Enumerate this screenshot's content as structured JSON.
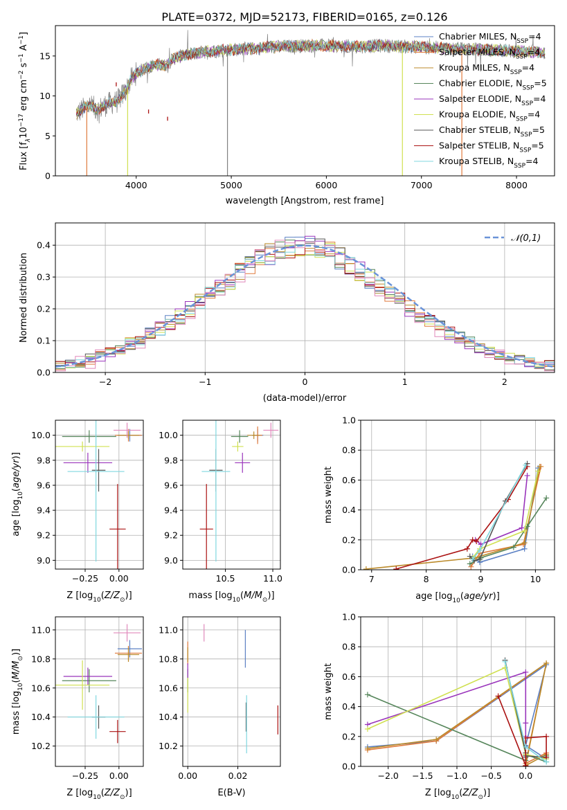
{
  "title": "PLATE=0372, MJD=52173, FIBERID=0165, z=0.126",
  "colors": {
    "Chabrier MILES": "#5b80c4",
    "Salpeter MILES": "#e07a3c",
    "Kroupa MILES": "#bb8a2a",
    "Chabrier ELODIE": "#55855a",
    "Salpeter ELODIE": "#9933bb",
    "Kroupa ELODIE": "#d0e050",
    "Chabrier STELIB": "#555555",
    "Salpeter STELIB": "#aa1111",
    "Kroupa STELIB": "#7fd7df",
    "spectrum": "#808080",
    "gaussian": "#6a93d8"
  },
  "chart_data": [
    {
      "id": "spectrum",
      "type": "line",
      "xlabel": "wavelength [Angstrom, rest frame]",
      "ylabel": "Flux [fλ10^-17 erg cm^-2 s^-1 A^-1]",
      "xlim": [
        3150,
        8400
      ],
      "ylim": [
        0,
        18.8
      ],
      "xticks": [
        4000,
        5000,
        6000,
        7000,
        8000
      ],
      "yticks": [
        0,
        5,
        10,
        15
      ],
      "legend_position": "upper right",
      "legend": [
        "Chabrier MILES, NSSP=4",
        "Salpeter MILES, NSSP=4",
        "Kroupa MILES, NSSP=4",
        "Chabrier ELODIE, NSSP=5",
        "Salpeter ELODIE, NSSP=4",
        "Kroupa ELODIE, NSSP=4",
        "Chabrier STELIB, NSSP=5",
        "Salpeter STELIB, NSSP=5",
        "Kroupa STELIB, NSSP=4"
      ],
      "continuum": {
        "x": [
          3370,
          3500,
          3600,
          3700,
          3800,
          3900,
          3950,
          4000,
          4100,
          4200,
          4300,
          4400,
          4500,
          4600,
          4700,
          4800,
          4900,
          5000,
          5200,
          5400,
          5600,
          5800,
          6000,
          6200,
          6400,
          6600,
          6800,
          7000,
          7200,
          7400,
          7600,
          7800,
          8000,
          8200,
          8300
        ],
        "y": [
          7.8,
          8.8,
          8.3,
          9.0,
          9.3,
          10.8,
          12.2,
          12.8,
          13.5,
          13.9,
          13.8,
          14.7,
          15.1,
          15.3,
          15.5,
          15.6,
          15.7,
          15.8,
          15.9,
          16.1,
          16.2,
          16.3,
          16.3,
          16.2,
          16.2,
          16.3,
          16.2,
          16.1,
          16.0,
          15.9,
          15.8,
          15.7,
          15.6,
          15.5,
          15.4
        ]
      },
      "dips": [
        {
          "x": 3480,
          "y": 0,
          "series": "Salpeter MILES"
        },
        {
          "x": 3910,
          "y": 0,
          "series": "Kroupa ELODIE"
        },
        {
          "x": 4960,
          "y": 0,
          "series": "spectrum"
        },
        {
          "x": 6800,
          "y": 0,
          "series": "Kroupa ELODIE"
        },
        {
          "x": 7425,
          "y": 0,
          "series": "Salpeter MILES"
        }
      ]
    },
    {
      "id": "residuals",
      "type": "histogram",
      "xlabel": "(data-model)/error",
      "ylabel": "Normed distribution",
      "xlim": [
        -2.5,
        2.5
      ],
      "ylim": [
        0,
        0.47
      ],
      "xticks": [
        -2,
        -1,
        0,
        1,
        2
      ],
      "yticks": [
        0.0,
        0.1,
        0.2,
        0.3,
        0.4
      ],
      "grid": true,
      "legend_position": "upper right",
      "legend": [
        "𝒩(0,1)"
      ],
      "bin_width": 0.1,
      "bin_start": -2.5,
      "base_values": [
        0.02,
        0.025,
        0.032,
        0.042,
        0.052,
        0.062,
        0.075,
        0.09,
        0.105,
        0.12,
        0.138,
        0.157,
        0.177,
        0.198,
        0.22,
        0.243,
        0.266,
        0.29,
        0.313,
        0.336,
        0.356,
        0.372,
        0.386,
        0.394,
        0.398,
        0.396,
        0.389,
        0.376,
        0.359,
        0.339,
        0.317,
        0.294,
        0.27,
        0.247,
        0.224,
        0.201,
        0.18,
        0.16,
        0.141,
        0.124,
        0.108,
        0.093,
        0.08,
        0.068,
        0.058,
        0.049,
        0.041,
        0.034,
        0.028,
        0.023
      ]
    },
    {
      "id": "age_vs_Z",
      "type": "errorbar",
      "xlabel": "Z [log10(Z/Z⊙)]",
      "ylabel": "age  [log10(age/yr)]",
      "xlim": [
        -0.47,
        0.18
      ],
      "ylim": [
        8.93,
        10.12
      ],
      "xticks": [
        -0.25,
        0.0
      ],
      "yticks": [
        9.0,
        9.2,
        9.4,
        9.6,
        9.8,
        10.0
      ],
      "grid": true,
      "points": [
        {
          "series": "Chabrier MILES",
          "x": 0.08,
          "y": 10.0,
          "xerr": 0.09,
          "yerr": 0.05
        },
        {
          "series": "Salpeter MILES",
          "x": 0.07,
          "y": 10.0,
          "xerr": 0.1,
          "yerr": 0.05
        },
        {
          "series": "Kroupa MILES",
          "x": 0.07,
          "y": 10.0,
          "xerr": 0.08,
          "yerr": 0.03
        },
        {
          "series": "Chabrier ELODIE",
          "x": -0.22,
          "y": 9.99,
          "xerr": 0.2,
          "yerr": 0.05
        },
        {
          "series": "Salpeter ELODIE",
          "x": -0.23,
          "y": 9.78,
          "xerr": 0.18,
          "yerr": 0.08
        },
        {
          "series": "Kroupa ELODIE",
          "x": -0.27,
          "y": 9.91,
          "xerr": 0.2,
          "yerr": 0.04
        },
        {
          "series": "Chabrier STELIB",
          "x": -0.15,
          "y": 9.72,
          "xerr": 0.05,
          "yerr": 0.17
        },
        {
          "series": "Salpeter STELIB",
          "x": -0.01,
          "y": 9.25,
          "xerr": 0.06,
          "yerr": 0.36
        },
        {
          "series": "Kroupa STELIB",
          "x": -0.17,
          "y": 9.71,
          "xerr": 0.21,
          "yerr": 0.72
        },
        {
          "series": "Pink",
          "x": 0.06,
          "y": 10.04,
          "xerr": 0.1,
          "yerr": 0.06
        }
      ]
    },
    {
      "id": "age_vs_mass",
      "type": "errorbar",
      "xlabel": "mass [log10(M/M⊙)]",
      "xlim": [
        10.05,
        11.08
      ],
      "ylim": [
        8.93,
        10.12
      ],
      "xticks": [
        10.5,
        11.0
      ],
      "yticks": [
        9.0,
        9.2,
        9.4,
        9.6,
        9.8,
        10.0
      ],
      "grid": true,
      "points": [
        {
          "series": "Chabrier MILES",
          "x": 10.84,
          "y": 10.0,
          "xerr": 0.06,
          "yerr": 0.05
        },
        {
          "series": "Salpeter MILES",
          "x": 10.84,
          "y": 10.0,
          "xerr": 0.05,
          "yerr": 0.07
        },
        {
          "series": "Kroupa MILES",
          "x": 10.8,
          "y": 10.0,
          "xerr": 0.07,
          "yerr": 0.03
        },
        {
          "series": "Chabrier ELODIE",
          "x": 10.65,
          "y": 9.99,
          "xerr": 0.09,
          "yerr": 0.05
        },
        {
          "series": "Salpeter ELODIE",
          "x": 10.68,
          "y": 9.78,
          "xerr": 0.08,
          "yerr": 0.08
        },
        {
          "series": "Kroupa ELODIE",
          "x": 10.63,
          "y": 9.91,
          "xerr": 0.06,
          "yerr": 0.04
        },
        {
          "series": "Chabrier STELIB",
          "x": 10.4,
          "y": 9.72,
          "xerr": 0.07,
          "yerr": 0.17
        },
        {
          "series": "Salpeter STELIB",
          "x": 10.3,
          "y": 9.25,
          "xerr": 0.07,
          "yerr": 0.36
        },
        {
          "series": "Kroupa STELIB",
          "x": 10.4,
          "y": 9.71,
          "xerr": 0.15,
          "yerr": 0.72
        },
        {
          "series": "Pink",
          "x": 10.98,
          "y": 10.04,
          "xerr": 0.08,
          "yerr": 0.06
        }
      ]
    },
    {
      "id": "massweight_vs_age",
      "type": "line",
      "xlabel": "age  [log10(age/yr)]",
      "ylabel": "mass weight",
      "xlim": [
        6.8,
        10.35
      ],
      "ylim": [
        0,
        1.0
      ],
      "xticks": [
        7,
        8,
        9,
        10
      ],
      "yticks": [
        0.0,
        0.2,
        0.4,
        0.6,
        0.8,
        1.0
      ],
      "grid": true,
      "series": [
        {
          "name": "Chabrier MILES",
          "x": [
            8.85,
            8.98,
            9.8,
            10.05
          ],
          "y": [
            0.09,
            0.05,
            0.14,
            0.68
          ]
        },
        {
          "name": "Salpeter MILES",
          "x": [
            8.82,
            8.98,
            9.78,
            10.1
          ],
          "y": [
            0.02,
            0.11,
            0.17,
            0.69
          ]
        },
        {
          "name": "Kroupa MILES",
          "x": [
            6.9,
            8.9,
            9.8,
            10.08
          ],
          "y": [
            0.005,
            0.08,
            0.18,
            0.69
          ]
        },
        {
          "name": "Chabrier ELODIE",
          "x": [
            8.8,
            9.0,
            9.6,
            9.85,
            10.2
          ],
          "y": [
            0.04,
            0.08,
            0.15,
            0.29,
            0.48
          ]
        },
        {
          "name": "Salpeter ELODIE",
          "x": [
            8.9,
            9.0,
            9.75,
            9.85
          ],
          "y": [
            0.2,
            0.17,
            0.28,
            0.63
          ]
        },
        {
          "name": "Kroupa ELODIE",
          "x": [
            8.85,
            8.98,
            9.8,
            10.05
          ],
          "y": [
            0.08,
            0.14,
            0.26,
            0.66
          ]
        },
        {
          "name": "Chabrier STELIB",
          "x": [
            8.8,
            8.88,
            8.98,
            9.45,
            9.85
          ],
          "y": [
            0.09,
            0.06,
            0.07,
            0.46,
            0.71
          ]
        },
        {
          "name": "Salpeter STELIB",
          "x": [
            7.45,
            8.75,
            8.85,
            8.92,
            9.5,
            9.85
          ],
          "y": [
            0.005,
            0.14,
            0.2,
            0.19,
            0.47,
            0.69
          ]
        },
        {
          "name": "Kroupa STELIB",
          "x": [
            8.85,
            8.98,
            9.82
          ],
          "y": [
            0.07,
            0.13,
            0.7
          ]
        }
      ]
    },
    {
      "id": "mass_vs_Z",
      "type": "errorbar",
      "xlabel": "Z [log10(Z/Z⊙)]",
      "ylabel": "mass [log10(M/M⊙)]",
      "xlim": [
        -0.47,
        0.18
      ],
      "ylim": [
        10.06,
        11.09
      ],
      "xticks": [
        -0.25,
        0.0
      ],
      "yticks": [
        10.2,
        10.4,
        10.6,
        10.8,
        11.0
      ],
      "grid": true,
      "points": [
        {
          "series": "Chabrier MILES",
          "x": 0.08,
          "y": 10.87,
          "xerr": 0.09,
          "yerr": 0.06
        },
        {
          "series": "Salpeter MILES",
          "x": 0.07,
          "y": 10.84,
          "xerr": 0.1,
          "yerr": 0.05
        },
        {
          "series": "Kroupa MILES",
          "x": 0.07,
          "y": 10.83,
          "xerr": 0.08,
          "yerr": 0.05
        },
        {
          "series": "Chabrier ELODIE",
          "x": -0.22,
          "y": 10.65,
          "xerr": 0.2,
          "yerr": 0.08
        },
        {
          "series": "Salpeter ELODIE",
          "x": -0.23,
          "y": 10.68,
          "xerr": 0.18,
          "yerr": 0.06
        },
        {
          "series": "Kroupa ELODIE",
          "x": -0.27,
          "y": 10.62,
          "xerr": 0.2,
          "yerr": 0.17
        },
        {
          "series": "Chabrier STELIB",
          "x": -0.15,
          "y": 10.4,
          "xerr": 0.05,
          "yerr": 0.08
        },
        {
          "series": "Salpeter STELIB",
          "x": -0.01,
          "y": 10.3,
          "xerr": 0.06,
          "yerr": 0.08
        },
        {
          "series": "Kroupa STELIB",
          "x": -0.17,
          "y": 10.4,
          "xerr": 0.21,
          "yerr": 0.15
        },
        {
          "series": "Pink",
          "x": 0.06,
          "y": 10.98,
          "xerr": 0.1,
          "yerr": 0.06
        }
      ]
    },
    {
      "id": "mass_vs_EBV",
      "type": "errorbar",
      "xlabel": "E(B-V)",
      "xlim": [
        -0.002,
        0.037
      ],
      "ylim": [
        10.06,
        11.09
      ],
      "xticks": [
        0.0,
        0.02
      ],
      "yticks": [
        10.2,
        10.4,
        10.6,
        10.8,
        11.0
      ],
      "grid": true,
      "points": [
        {
          "series": "Chabrier MILES",
          "x": 0.023,
          "y": 10.87,
          "yerr": 0.13
        },
        {
          "series": "Salpeter MILES",
          "x": 0.0,
          "y": 10.84,
          "yerr": 0.08
        },
        {
          "series": "Kroupa MILES",
          "x": 0.0,
          "y": 10.83,
          "yerr": 0.05
        },
        {
          "series": "Chabrier ELODIE",
          "x": 0.0,
          "y": 10.65,
          "yerr": 0.08
        },
        {
          "series": "Salpeter ELODIE",
          "x": 0.0,
          "y": 10.72,
          "yerr": 0.05
        },
        {
          "series": "Kroupa ELODIE",
          "x": 0.0,
          "y": 10.55,
          "yerr": 0.12
        },
        {
          "series": "Chabrier STELIB",
          "x": 0.0233,
          "y": 10.4,
          "yerr": 0.1
        },
        {
          "series": "Salpeter STELIB",
          "x": 0.036,
          "y": 10.38,
          "yerr": 0.1
        },
        {
          "series": "Kroupa STELIB",
          "x": 0.0235,
          "y": 10.35,
          "yerr": 0.2
        },
        {
          "series": "Pink",
          "x": 0.0065,
          "y": 10.98,
          "yerr": 0.06
        }
      ]
    },
    {
      "id": "massweight_vs_Z",
      "type": "line",
      "xlabel": "Z [log10(Z/Z⊙)]",
      "ylabel": "mass weight",
      "xlim": [
        -2.4,
        0.42
      ],
      "ylim": [
        0,
        1.0
      ],
      "xticks": [
        -2.0,
        -1.5,
        -1.0,
        -0.5,
        0.0
      ],
      "yticks": [
        0.0,
        0.2,
        0.4,
        0.6,
        0.8,
        1.0
      ],
      "grid": true,
      "series": [
        {
          "name": "Chabrier MILES",
          "x": [
            -2.3,
            -1.3,
            0.3,
            0.0,
            0.3
          ],
          "y": [
            0.13,
            0.17,
            0.68,
            0.14,
            0.05
          ]
        },
        {
          "name": "Salpeter MILES",
          "x": [
            -2.3,
            -1.3,
            0.3,
            0.0,
            0.3
          ],
          "y": [
            0.11,
            0.17,
            0.69,
            0.02,
            0.09
          ]
        },
        {
          "name": "Kroupa MILES",
          "x": [
            -2.3,
            -1.3,
            0.3,
            0.0,
            0.3
          ],
          "y": [
            0.12,
            0.18,
            0.69,
            0.005,
            0.08
          ]
        },
        {
          "name": "Chabrier ELODIE",
          "x": [
            -2.3,
            0.0,
            0.0,
            0.3,
            0.3
          ],
          "y": [
            0.48,
            0.04,
            0.08,
            0.03,
            0.07
          ]
        },
        {
          "name": "Salpeter ELODIE",
          "x": [
            -2.3,
            0.0,
            0.0,
            0.0
          ],
          "y": [
            0.28,
            0.63,
            0.29,
            0.2
          ]
        },
        {
          "name": "Kroupa ELODIE",
          "x": [
            -2.3,
            -0.3,
            0.0,
            0.3
          ],
          "y": [
            0.25,
            0.66,
            0.08,
            0.05
          ]
        },
        {
          "name": "Chabrier STELIB",
          "x": [
            -0.3,
            0.0,
            0.0,
            0.0,
            0.3
          ],
          "y": [
            0.71,
            0.09,
            0.06,
            0.07,
            0.06
          ]
        },
        {
          "name": "Salpeter STELIB",
          "x": [
            -0.4,
            0.0,
            0.0,
            0.3,
            0.3
          ],
          "y": [
            0.47,
            0.005,
            0.19,
            0.2,
            0.06
          ]
        },
        {
          "name": "Kroupa STELIB",
          "x": [
            -0.3,
            0.0,
            0.3
          ],
          "y": [
            0.7,
            0.13,
            0.03
          ]
        }
      ]
    }
  ]
}
